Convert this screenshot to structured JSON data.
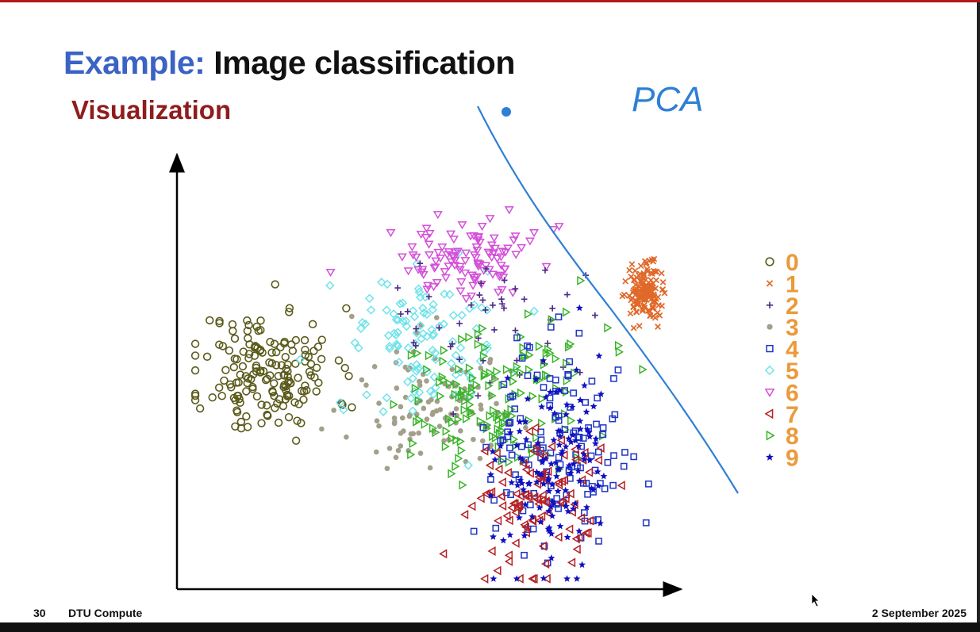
{
  "slide": {
    "title_part1": "Example:",
    "title_part2": "Image classification",
    "subtitle": "Visualization",
    "annotation": "PCA",
    "footer": {
      "page": "30",
      "org": "DTU Compute",
      "date": "2 September 2025"
    }
  },
  "chart_data": {
    "type": "scatter",
    "title": "",
    "xlabel": "",
    "ylabel": "",
    "xlim": [
      0,
      100
    ],
    "ylim": [
      0,
      100
    ],
    "grid": false,
    "legend_position": "right",
    "series": [
      {
        "name": "0",
        "marker": "circle",
        "color": "#5a5a1a",
        "center": [
          16,
          52
        ],
        "spread": [
          7,
          8
        ],
        "n": 170,
        "seed": 11
      },
      {
        "name": "1",
        "marker": "x",
        "color": "#e0692a",
        "center": [
          94,
          72
        ],
        "spread": [
          1.6,
          3.2
        ],
        "n": 150,
        "seed": 22
      },
      {
        "name": "2",
        "marker": "plus",
        "color": "#4b2a86",
        "center": [
          62,
          62
        ],
        "spread": [
          10,
          9
        ],
        "n": 45,
        "seed": 33
      },
      {
        "name": "3",
        "marker": "dot",
        "color": "#a39f8a",
        "center": [
          50,
          44
        ],
        "spread": [
          9,
          9
        ],
        "n": 110,
        "seed": 44
      },
      {
        "name": "4",
        "marker": "square",
        "color": "#1f35c6",
        "center": [
          75,
          32
        ],
        "spread": [
          8,
          13
        ],
        "n": 130,
        "seed": 55
      },
      {
        "name": "5",
        "marker": "diamond",
        "color": "#6fe3ea",
        "center": [
          48,
          58
        ],
        "spread": [
          8,
          9
        ],
        "n": 110,
        "seed": 66
      },
      {
        "name": "6",
        "marker": "triangle-down",
        "color": "#d350d8",
        "center": [
          57,
          80
        ],
        "spread": [
          8,
          5
        ],
        "n": 110,
        "seed": 77
      },
      {
        "name": "7",
        "marker": "triangle-left",
        "color": "#b52124",
        "center": [
          72,
          20
        ],
        "spread": [
          6,
          9
        ],
        "n": 110,
        "seed": 88
      },
      {
        "name": "8",
        "marker": "triangle-right",
        "color": "#3ab52a",
        "center": [
          64,
          46
        ],
        "spread": [
          10,
          10
        ],
        "n": 150,
        "seed": 99
      },
      {
        "name": "9",
        "marker": "star",
        "color": "#1111c2",
        "center": [
          76,
          28
        ],
        "spread": [
          6,
          13
        ],
        "n": 130,
        "seed": 110
      }
    ],
    "legend_label_color": "#eb9a3a",
    "annotation_color": "#2f7fd6"
  }
}
